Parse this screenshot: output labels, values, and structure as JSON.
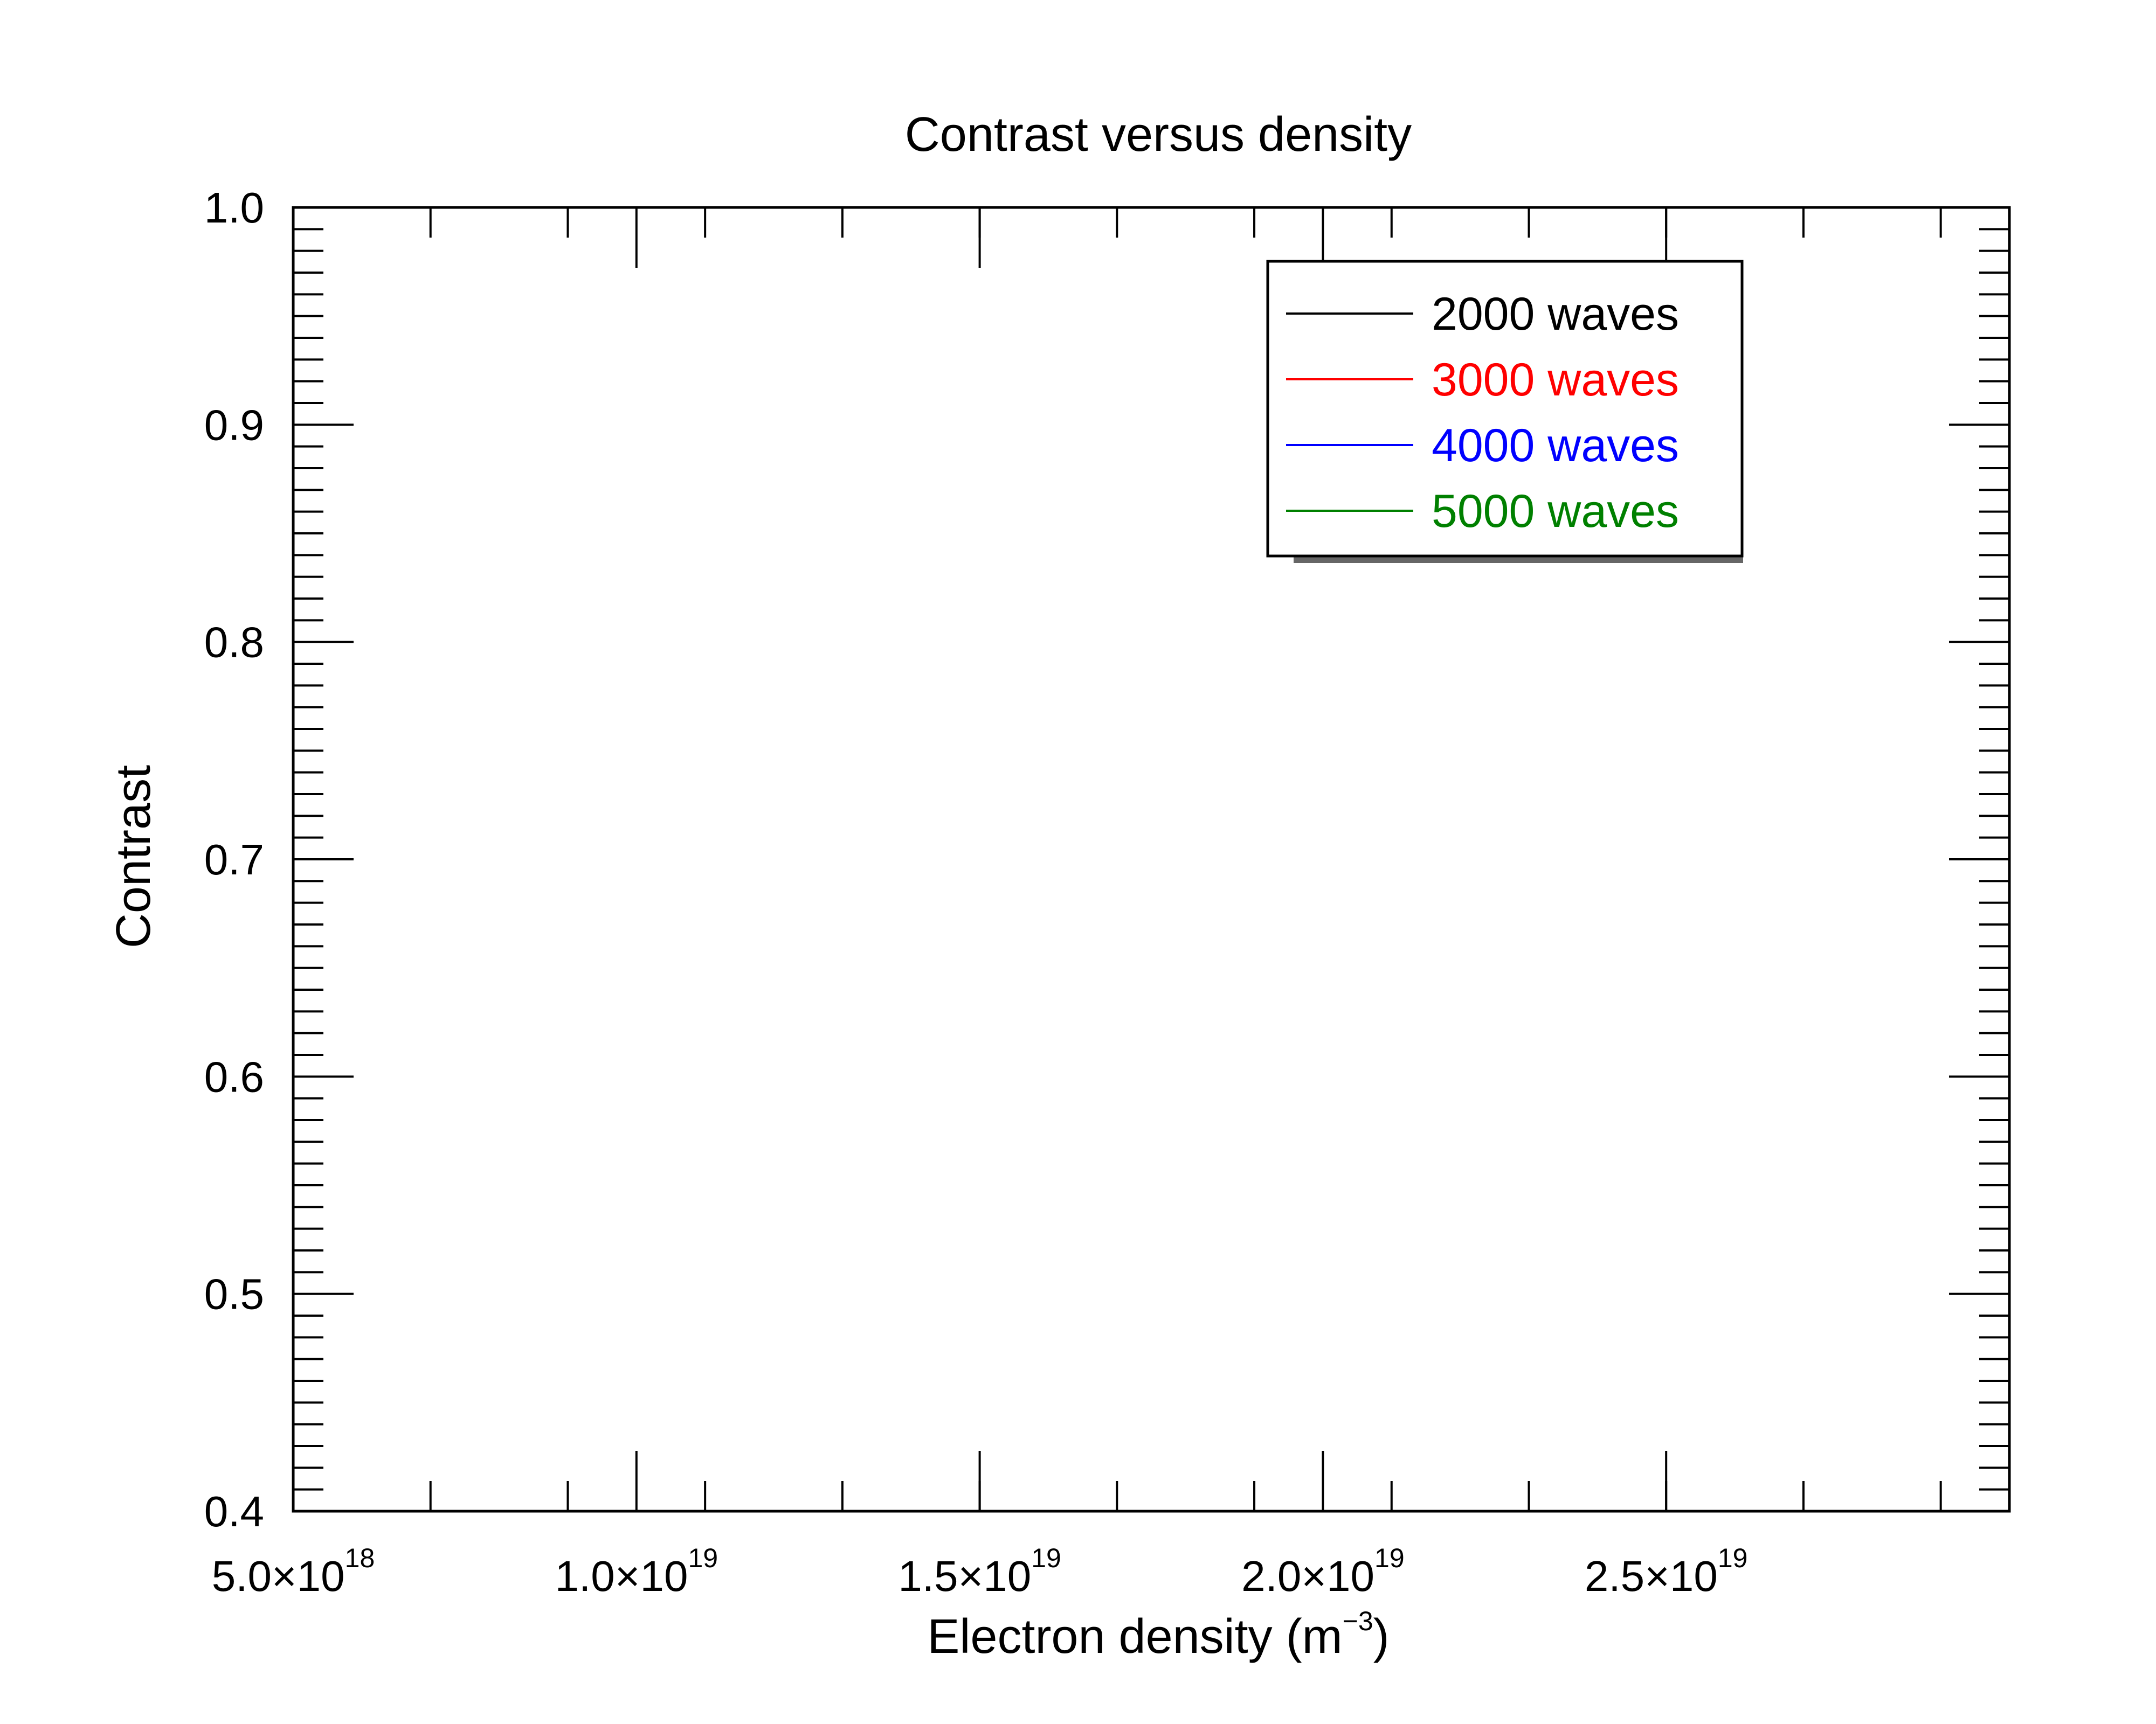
{
  "chart_data": {
    "type": "line",
    "title": "Contrast versus density",
    "xlabel": "Electron density (m",
    "xlabel_exponent": "−3",
    "xlabel_suffix": ")",
    "ylabel": "Contrast",
    "xlim": [
      5e+18,
      3e+19
    ],
    "ylim": [
      0.4,
      1.0
    ],
    "x_ticks": [
      {
        "value": 5e+18,
        "mantissa": "5.0×10",
        "exponent": "18"
      },
      {
        "value": 1e+19,
        "mantissa": "1.0×10",
        "exponent": "19"
      },
      {
        "value": 1.5e+19,
        "mantissa": "1.5×10",
        "exponent": "19"
      },
      {
        "value": 2e+19,
        "mantissa": "2.0×10",
        "exponent": "19"
      },
      {
        "value": 2.5e+19,
        "mantissa": "2.5×10",
        "exponent": "19"
      }
    ],
    "x_minor_step": 2e+18,
    "y_ticks": [
      {
        "value": 0.4,
        "label": "0.4"
      },
      {
        "value": 0.5,
        "label": "0.5"
      },
      {
        "value": 0.6,
        "label": "0.6"
      },
      {
        "value": 0.7,
        "label": "0.7"
      },
      {
        "value": 0.8,
        "label": "0.8"
      },
      {
        "value": 0.9,
        "label": "0.9"
      },
      {
        "value": 1.0,
        "label": "1.0"
      }
    ],
    "y_minor_step": 0.01,
    "grid": false,
    "legend_position": "top-right",
    "series": [
      {
        "name": "2000 waves",
        "color": "#000000",
        "x": [],
        "y": []
      },
      {
        "name": "3000 waves",
        "color": "#ff0000",
        "x": [],
        "y": []
      },
      {
        "name": "4000 waves",
        "color": "#0000ff",
        "x": [],
        "y": []
      },
      {
        "name": "5000 waves",
        "color": "#008000",
        "x": [],
        "y": []
      }
    ]
  }
}
